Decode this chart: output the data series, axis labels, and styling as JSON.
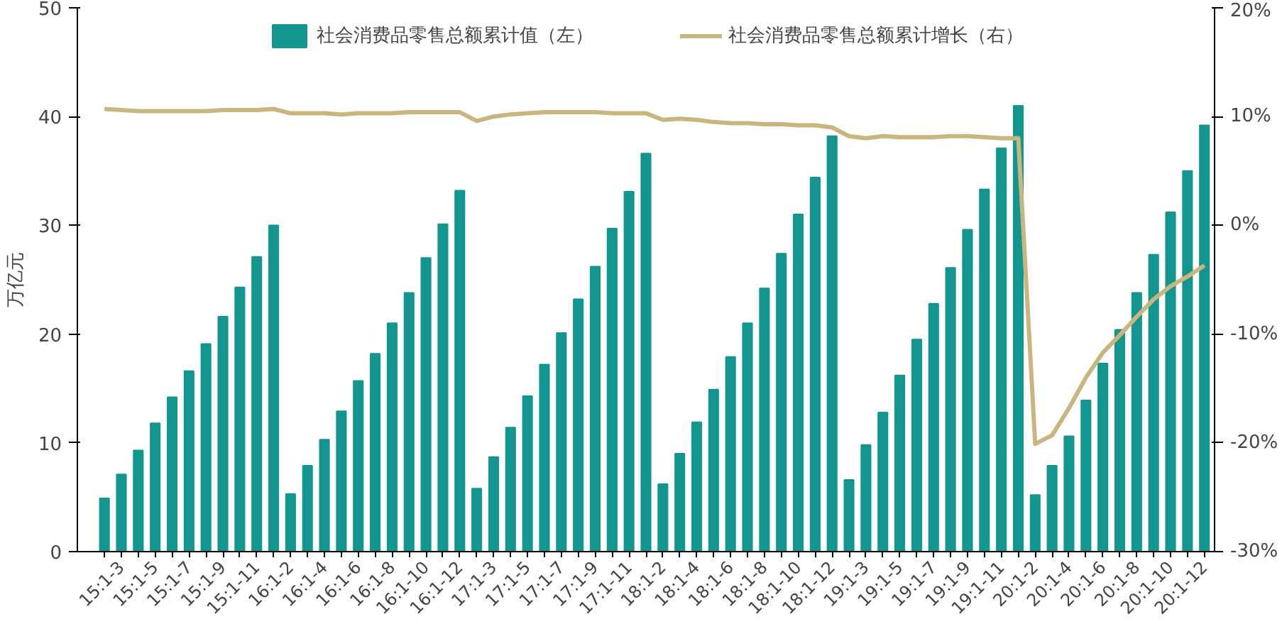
{
  "chart_data": {
    "type": "bar",
    "ylabel": "万亿元",
    "legend": "top",
    "grid": false,
    "categories": [
      null,
      "15:1-3",
      null,
      "15:1-5",
      null,
      "15:1-7",
      null,
      "15:1-9",
      null,
      "15:1-11",
      null,
      "16:1-2",
      null,
      "16:1-4",
      null,
      "16:1-6",
      null,
      "16:1-8",
      null,
      "16:1-10",
      null,
      "16:1-12",
      null,
      "17:1-3",
      null,
      "17:1-5",
      null,
      "17:1-7",
      null,
      "17:1-9",
      null,
      "17:1-11",
      null,
      "18:1-2",
      null,
      "18:1-4",
      null,
      "18:1-6",
      null,
      "18:1-8",
      null,
      "18:1-10",
      null,
      "18:1-12",
      null,
      "19:1-3",
      null,
      "19:1-5",
      null,
      "19:1-7",
      null,
      "19:1-9",
      null,
      "19:1-11",
      null,
      "20:1-2",
      null,
      "20:1-4",
      null,
      "20:1-6",
      null,
      "20:1-8",
      null,
      "20:1-10",
      null,
      "20:1-12"
    ],
    "ylim": [
      0,
      50
    ],
    "yticks": [
      0,
      10,
      20,
      30,
      40,
      50
    ],
    "y2lim": [
      -30,
      20
    ],
    "y2ticks": [
      {
        "value": -30,
        "label": "-30%"
      },
      {
        "value": -20,
        "label": "-20%"
      },
      {
        "value": -10,
        "label": "-10%"
      },
      {
        "value": 0,
        "label": "0%"
      },
      {
        "value": 10,
        "label": "10%"
      },
      {
        "value": 20,
        "label": "20%"
      }
    ],
    "series": [
      {
        "name": "社会消费品零售总额累计值（左）",
        "color": "#13968f",
        "values": [
          4.9,
          7.1,
          9.3,
          11.8,
          14.2,
          16.6,
          19.1,
          21.6,
          24.3,
          27.1,
          30.0,
          5.3,
          7.9,
          10.3,
          12.9,
          15.7,
          18.2,
          21.0,
          23.8,
          27.0,
          30.1,
          33.2,
          5.8,
          8.7,
          11.4,
          14.3,
          17.2,
          20.1,
          23.2,
          26.2,
          29.7,
          33.1,
          36.6,
          6.2,
          9.0,
          11.9,
          14.9,
          17.9,
          21.0,
          24.2,
          27.4,
          31.0,
          34.4,
          38.2,
          6.6,
          9.8,
          12.8,
          16.2,
          19.5,
          22.8,
          26.1,
          29.6,
          33.3,
          37.1,
          41.0,
          5.2,
          7.9,
          10.6,
          13.9,
          17.3,
          20.4,
          23.8,
          27.3,
          31.2,
          35.0,
          39.2
        ]
      },
      {
        "name": "社会消费品零售总额累计增长（右）",
        "type": "line",
        "axis": "y2",
        "color": "#c9b67f",
        "values": [
          10.7,
          10.6,
          10.5,
          10.5,
          10.5,
          10.5,
          10.5,
          10.6,
          10.6,
          10.6,
          10.7,
          10.3,
          10.3,
          10.3,
          10.2,
          10.3,
          10.3,
          10.3,
          10.4,
          10.4,
          10.4,
          10.4,
          9.6,
          10.0,
          10.2,
          10.3,
          10.4,
          10.4,
          10.4,
          10.4,
          10.3,
          10.3,
          10.3,
          9.7,
          9.8,
          9.7,
          9.5,
          9.4,
          9.4,
          9.3,
          9.3,
          9.2,
          9.2,
          9.0,
          8.2,
          8.0,
          8.2,
          8.1,
          8.1,
          8.1,
          8.2,
          8.2,
          8.1,
          8.0,
          8.0,
          -20.1,
          -19.3,
          -16.8,
          -14.0,
          -11.7,
          -10.1,
          -8.4,
          -6.8,
          -5.6,
          -4.7,
          -3.7
        ]
      }
    ]
  }
}
